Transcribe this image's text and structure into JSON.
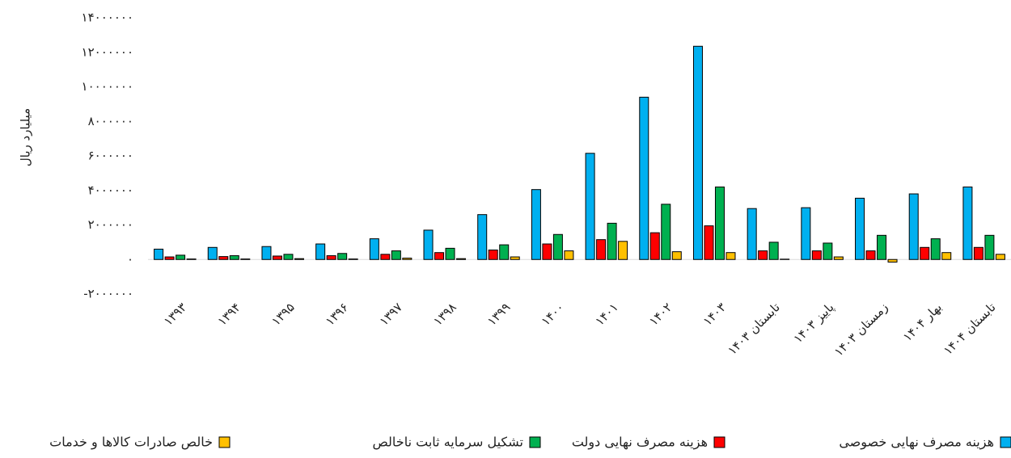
{
  "chart_data": {
    "type": "bar",
    "y_label": "میلیارد ریال",
    "categories": [
      "۱۳۹۳",
      "۱۳۹۴",
      "۱۳۹۵",
      "۱۳۹۶",
      "۱۳۹۷",
      "۱۳۹۸",
      "۱۳۹۹",
      "۱۴۰۰",
      "۱۴۰۱",
      "۱۴۰۲",
      "۱۴۰۳",
      "تابستان ۱۴۰۳",
      "پاییز ۱۴۰۳",
      "زمستان ۱۴۰۳",
      "بهار ۱۴۰۴",
      "تابستان ۱۴۰۴"
    ],
    "series": [
      {
        "name": "هزینه مصرف نهایی خصوصی",
        "color": "#00b0f0",
        "values": [
          600000,
          700000,
          750000,
          900000,
          1200000,
          1700000,
          2600000,
          4050000,
          6150000,
          9400000,
          12350000,
          2950000,
          3000000,
          3550000,
          3800000,
          4200000
        ]
      },
      {
        "name": "هزینه مصرف نهایی دولت",
        "color": "#ff0000",
        "values": [
          150000,
          170000,
          200000,
          220000,
          300000,
          400000,
          550000,
          900000,
          1150000,
          1550000,
          1950000,
          500000,
          500000,
          500000,
          700000,
          700000
        ]
      },
      {
        "name": "تشکیل سرمایه ثابت ناخالص",
        "color": "#00b050",
        "values": [
          250000,
          220000,
          300000,
          350000,
          500000,
          650000,
          850000,
          1450000,
          2100000,
          3200000,
          4200000,
          1000000,
          950000,
          1400000,
          1200000,
          1400000
        ]
      },
      {
        "name": "خالص صادرات کالاها و خدمات",
        "color": "#ffc000",
        "values": [
          30000,
          30000,
          50000,
          30000,
          80000,
          50000,
          150000,
          500000,
          1050000,
          450000,
          400000,
          20000,
          150000,
          -150000,
          400000,
          300000
        ]
      }
    ],
    "ylim": [
      -2000000,
      14000000
    ],
    "yticks": [
      {
        "value": -2000000,
        "label": "-۲۰۰۰۰۰۰"
      },
      {
        "value": 0,
        "label": "۰"
      },
      {
        "value": 2000000,
        "label": "۲۰۰۰۰۰۰"
      },
      {
        "value": 4000000,
        "label": "۴۰۰۰۰۰۰"
      },
      {
        "value": 6000000,
        "label": "۶۰۰۰۰۰۰"
      },
      {
        "value": 8000000,
        "label": "۸۰۰۰۰۰۰"
      },
      {
        "value": 10000000,
        "label": "۱۰۰۰۰۰۰۰"
      },
      {
        "value": 12000000,
        "label": "۱۲۰۰۰۰۰۰"
      },
      {
        "value": 14000000,
        "label": "۱۴۰۰۰۰۰۰"
      }
    ],
    "grid": false,
    "legend": "bottom"
  }
}
